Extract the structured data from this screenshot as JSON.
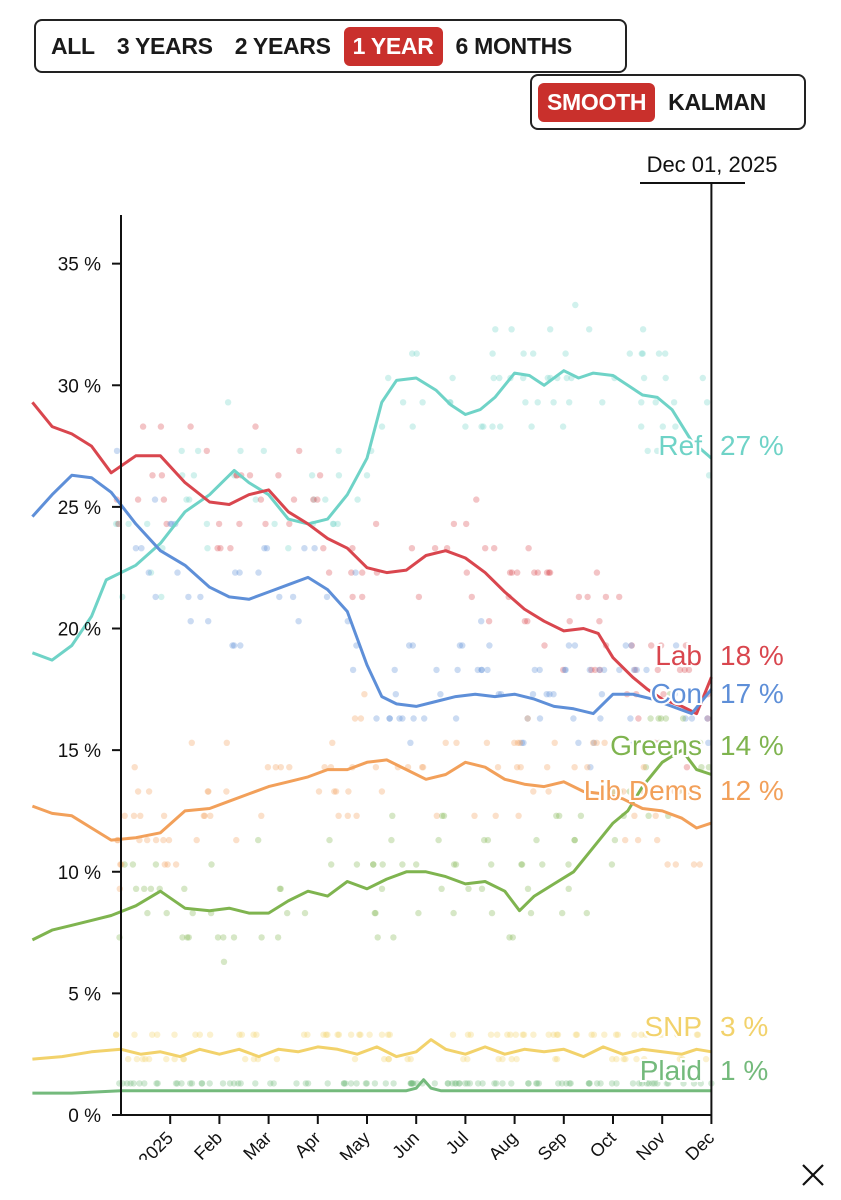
{
  "range_buttons": [
    {
      "label": "ALL",
      "active": false
    },
    {
      "label": "3 YEARS",
      "active": false
    },
    {
      "label": "2 YEARS",
      "active": false
    },
    {
      "label": "1 YEAR",
      "active": true
    },
    {
      "label": "6 MONTHS",
      "active": false
    }
  ],
  "method_buttons": [
    {
      "label": "SMOOTH",
      "active": true
    },
    {
      "label": "KALMAN",
      "active": false
    }
  ],
  "cursor_date": "Dec 01, 2025",
  "icons": {
    "close": "close-icon"
  },
  "colors": {
    "accent": "#c9302c"
  },
  "chart_data": {
    "type": "line",
    "title": "",
    "xlabel": "",
    "ylabel": "",
    "x_unit": "months since Dec 1, 2024",
    "x_ticks": [
      {
        "label": "2025",
        "x": 1
      },
      {
        "label": "Feb",
        "x": 2
      },
      {
        "label": "Mar",
        "x": 3
      },
      {
        "label": "Apr",
        "x": 4
      },
      {
        "label": "May",
        "x": 5
      },
      {
        "label": "Jun",
        "x": 6
      },
      {
        "label": "Jul",
        "x": 7
      },
      {
        "label": "Aug",
        "x": 8
      },
      {
        "label": "Sep",
        "x": 9
      },
      {
        "label": "Oct",
        "x": 10
      },
      {
        "label": "Nov",
        "x": 11
      },
      {
        "label": "Dec",
        "x": 12
      }
    ],
    "y_ticks": [
      {
        "label": "0 %",
        "value": 0
      },
      {
        "label": "5 %",
        "value": 5
      },
      {
        "label": "10 %",
        "value": 10
      },
      {
        "label": "15 %",
        "value": 15
      },
      {
        "label": "20 %",
        "value": 20
      },
      {
        "label": "25 %",
        "value": 25
      },
      {
        "label": "30 %",
        "value": 30
      },
      {
        "label": "35 %",
        "value": 35
      }
    ],
    "xlim": [
      -1.8,
      12
    ],
    "ylim": [
      0,
      37
    ],
    "grid": false,
    "series": [
      {
        "name": "Ref",
        "end_label": "27 %",
        "color": "#6fd3c7",
        "points": [
          [
            -1.8,
            19
          ],
          [
            -1.4,
            18.7
          ],
          [
            -1,
            19.3
          ],
          [
            -0.6,
            20.5
          ],
          [
            -0.3,
            22
          ],
          [
            0.3,
            22.6
          ],
          [
            0.8,
            23.5
          ],
          [
            1.3,
            24.8
          ],
          [
            1.8,
            25.5
          ],
          [
            2.3,
            26.5
          ],
          [
            2.6,
            26
          ],
          [
            3,
            25.5
          ],
          [
            3.4,
            24.5
          ],
          [
            3.8,
            24.3
          ],
          [
            4.2,
            24.5
          ],
          [
            4.6,
            25.5
          ],
          [
            5,
            27
          ],
          [
            5.3,
            29.3
          ],
          [
            5.6,
            30.2
          ],
          [
            6,
            30.3
          ],
          [
            6.4,
            29.8
          ],
          [
            6.7,
            29.2
          ],
          [
            7,
            28.8
          ],
          [
            7.3,
            29
          ],
          [
            7.6,
            29.5
          ],
          [
            8,
            30.5
          ],
          [
            8.3,
            30.4
          ],
          [
            8.6,
            30
          ],
          [
            9,
            30.6
          ],
          [
            9.3,
            30.3
          ],
          [
            9.6,
            30.5
          ],
          [
            10,
            30.4
          ],
          [
            10.3,
            30
          ],
          [
            10.6,
            29.6
          ],
          [
            10.9,
            29.5
          ],
          [
            11.2,
            29
          ],
          [
            11.6,
            27.7
          ],
          [
            12,
            27
          ]
        ]
      },
      {
        "name": "Lab",
        "end_label": "18 %",
        "color": "#d9464e",
        "points": [
          [
            -1.8,
            29.3
          ],
          [
            -1.4,
            28.3
          ],
          [
            -1,
            28
          ],
          [
            -0.6,
            27.5
          ],
          [
            -0.2,
            26.4
          ],
          [
            0.3,
            27.1
          ],
          [
            0.8,
            27.1
          ],
          [
            1.3,
            26
          ],
          [
            1.8,
            25.2
          ],
          [
            2.2,
            25.1
          ],
          [
            2.6,
            25.5
          ],
          [
            3,
            25.7
          ],
          [
            3.4,
            24.8
          ],
          [
            3.8,
            24.3
          ],
          [
            4.2,
            23.7
          ],
          [
            4.6,
            23.3
          ],
          [
            5,
            22.5
          ],
          [
            5.4,
            22.3
          ],
          [
            5.8,
            22.4
          ],
          [
            6.2,
            23
          ],
          [
            6.6,
            23.2
          ],
          [
            7,
            22.9
          ],
          [
            7.4,
            22.3
          ],
          [
            7.8,
            21.5
          ],
          [
            8.2,
            20.8
          ],
          [
            8.6,
            20.3
          ],
          [
            9,
            19.9
          ],
          [
            9.4,
            20
          ],
          [
            9.7,
            19.8
          ],
          [
            10,
            18.8
          ],
          [
            10.4,
            18
          ],
          [
            10.7,
            17.5
          ],
          [
            11,
            17.1
          ],
          [
            11.4,
            16.8
          ],
          [
            11.7,
            16.5
          ],
          [
            12,
            18
          ]
        ]
      },
      {
        "name": "Con",
        "end_label": "17 %",
        "color": "#5e8fd8",
        "points": [
          [
            -1.8,
            24.6
          ],
          [
            -1.4,
            25.5
          ],
          [
            -1,
            26.3
          ],
          [
            -0.6,
            26.2
          ],
          [
            -0.2,
            25.6
          ],
          [
            0.3,
            24.3
          ],
          [
            0.8,
            23.2
          ],
          [
            1.3,
            22.6
          ],
          [
            1.8,
            21.7
          ],
          [
            2.2,
            21.3
          ],
          [
            2.6,
            21.2
          ],
          [
            3,
            21.5
          ],
          [
            3.4,
            21.8
          ],
          [
            3.8,
            22.1
          ],
          [
            4.2,
            21.6
          ],
          [
            4.6,
            20.7
          ],
          [
            5,
            18.5
          ],
          [
            5.3,
            17.2
          ],
          [
            5.6,
            16.9
          ],
          [
            6,
            16.8
          ],
          [
            6.4,
            17
          ],
          [
            6.8,
            17.2
          ],
          [
            7.2,
            17.3
          ],
          [
            7.6,
            17.2
          ],
          [
            8,
            17.3
          ],
          [
            8.4,
            17.1
          ],
          [
            8.8,
            16.8
          ],
          [
            9.2,
            16.7
          ],
          [
            9.6,
            16.5
          ],
          [
            10,
            17.3
          ],
          [
            10.4,
            17.3
          ],
          [
            10.8,
            17.1
          ],
          [
            11.2,
            16.8
          ],
          [
            11.6,
            16.5
          ],
          [
            12,
            17.5
          ]
        ]
      },
      {
        "name": "Greens",
        "end_label": "14 %",
        "color": "#7fb44f",
        "points": [
          [
            -1.8,
            7.2
          ],
          [
            -1.4,
            7.6
          ],
          [
            -1,
            7.8
          ],
          [
            -0.6,
            8
          ],
          [
            -0.2,
            8.2
          ],
          [
            0.3,
            8.6
          ],
          [
            0.8,
            9.2
          ],
          [
            1.3,
            8.5
          ],
          [
            1.8,
            8.4
          ],
          [
            2.2,
            8.5
          ],
          [
            2.6,
            8.3
          ],
          [
            3,
            8.3
          ],
          [
            3.4,
            8.8
          ],
          [
            3.8,
            9.2
          ],
          [
            4.2,
            9
          ],
          [
            4.6,
            9.6
          ],
          [
            5,
            9.3
          ],
          [
            5.4,
            9.7
          ],
          [
            5.8,
            10
          ],
          [
            6.2,
            10
          ],
          [
            6.6,
            9.8
          ],
          [
            7,
            9.5
          ],
          [
            7.4,
            9.6
          ],
          [
            7.8,
            9.2
          ],
          [
            8.1,
            8.4
          ],
          [
            8.4,
            9
          ],
          [
            8.8,
            9.5
          ],
          [
            9.2,
            10
          ],
          [
            9.6,
            11
          ],
          [
            10,
            12
          ],
          [
            10.3,
            12.5
          ],
          [
            10.6,
            13.5
          ],
          [
            11,
            14.5
          ],
          [
            11.4,
            15
          ],
          [
            11.7,
            14.2
          ],
          [
            12,
            14
          ]
        ]
      },
      {
        "name": "Lib Dems",
        "end_label": "12 %",
        "color": "#f2a05a",
        "points": [
          [
            -1.8,
            12.7
          ],
          [
            -1.4,
            12.4
          ],
          [
            -1,
            12.3
          ],
          [
            -0.6,
            11.8
          ],
          [
            -0.2,
            11.3
          ],
          [
            0.3,
            11.4
          ],
          [
            0.8,
            11.6
          ],
          [
            1.3,
            12.5
          ],
          [
            1.8,
            12.6
          ],
          [
            2.2,
            12.9
          ],
          [
            2.6,
            13.2
          ],
          [
            3,
            13.5
          ],
          [
            3.4,
            13.7
          ],
          [
            3.8,
            13.9
          ],
          [
            4.2,
            14.2
          ],
          [
            4.6,
            14.2
          ],
          [
            5,
            14.5
          ],
          [
            5.4,
            14.6
          ],
          [
            5.8,
            14.2
          ],
          [
            6.2,
            13.8
          ],
          [
            6.6,
            14
          ],
          [
            7,
            14.5
          ],
          [
            7.4,
            14.3
          ],
          [
            7.8,
            13.8
          ],
          [
            8.2,
            13.6
          ],
          [
            8.6,
            13.5
          ],
          [
            9,
            13.7
          ],
          [
            9.4,
            13.3
          ],
          [
            9.8,
            13.2
          ],
          [
            10.2,
            13
          ],
          [
            10.6,
            12.6
          ],
          [
            11,
            12.5
          ],
          [
            11.4,
            12.2
          ],
          [
            11.7,
            11.8
          ],
          [
            12,
            12
          ]
        ]
      },
      {
        "name": "SNP",
        "end_label": "3 %",
        "color": "#f2d26b",
        "points": [
          [
            -1.8,
            2.3
          ],
          [
            -1.2,
            2.4
          ],
          [
            -0.6,
            2.6
          ],
          [
            0,
            2.7
          ],
          [
            0.4,
            2.5
          ],
          [
            0.8,
            2.6
          ],
          [
            1.2,
            2.4
          ],
          [
            1.6,
            2.7
          ],
          [
            2,
            2.5
          ],
          [
            2.4,
            2.7
          ],
          [
            2.8,
            2.4
          ],
          [
            3.2,
            2.7
          ],
          [
            3.6,
            2.6
          ],
          [
            4,
            2.8
          ],
          [
            4.4,
            2.7
          ],
          [
            4.8,
            2.5
          ],
          [
            5.2,
            2.8
          ],
          [
            5.6,
            2.4
          ],
          [
            6,
            2.6
          ],
          [
            6.3,
            3.1
          ],
          [
            6.6,
            2.7
          ],
          [
            7,
            2.5
          ],
          [
            7.4,
            2.8
          ],
          [
            7.8,
            2.5
          ],
          [
            8.2,
            2.7
          ],
          [
            8.6,
            2.6
          ],
          [
            9,
            2.7
          ],
          [
            9.4,
            2.4
          ],
          [
            9.8,
            2.8
          ],
          [
            10.2,
            2.5
          ],
          [
            10.6,
            2.7
          ],
          [
            11,
            2.6
          ],
          [
            11.4,
            2.5
          ],
          [
            11.7,
            2.7
          ],
          [
            12,
            2.6
          ]
        ]
      },
      {
        "name": "Plaid",
        "end_label": "1 %",
        "color": "#74ba7c",
        "points": [
          [
            -1.8,
            0.9
          ],
          [
            -1,
            0.9
          ],
          [
            0,
            1
          ],
          [
            2,
            1
          ],
          [
            4,
            1
          ],
          [
            5.8,
            1
          ],
          [
            6,
            1.1
          ],
          [
            6.15,
            1.45
          ],
          [
            6.3,
            1.1
          ],
          [
            6.5,
            1
          ],
          [
            8,
            1
          ],
          [
            10,
            1
          ],
          [
            12,
            1
          ]
        ]
      }
    ]
  }
}
